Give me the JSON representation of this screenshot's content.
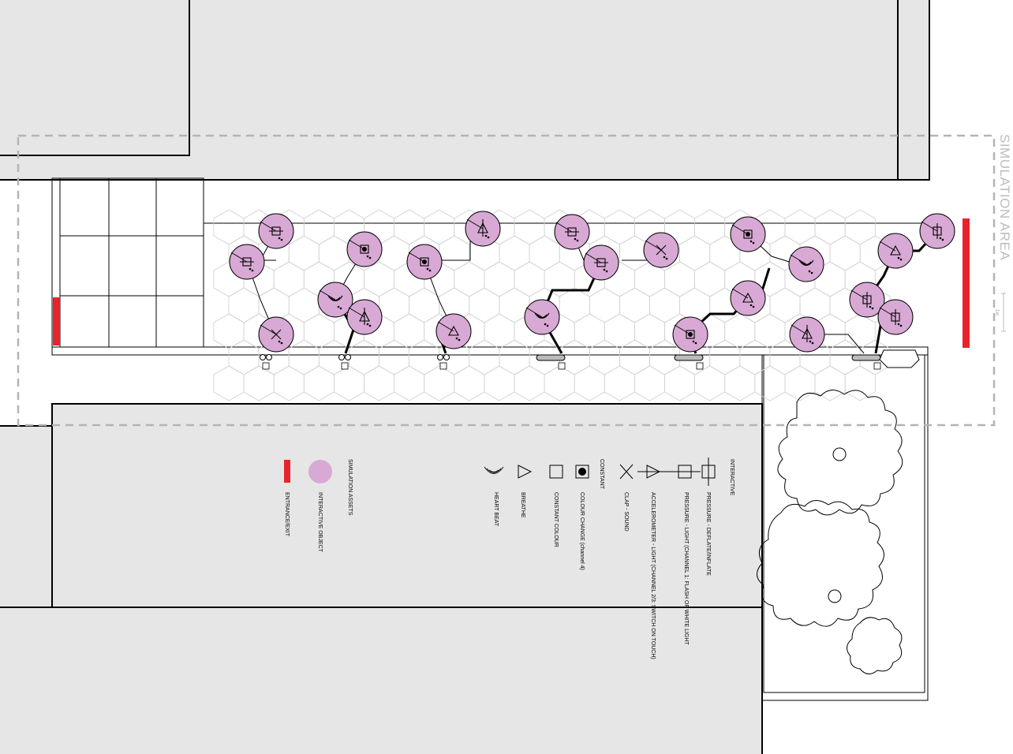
{
  "simulation_area_label": "SIMULATION AREA",
  "scale_label": "1m",
  "legend": {
    "assets_title": "SIMULATION ASSETS",
    "assets": [
      {
        "label": "INTERACTIVE OBJECT",
        "icon": "pink-circle-icon"
      },
      {
        "label": "ENTRANCE/EXIT",
        "icon": "red-bar-icon"
      }
    ],
    "constant_title": "CONSTANT",
    "constant": [
      {
        "label": "COLOUR CHANGE (channel 4)",
        "icon": "filled-square-icon"
      },
      {
        "label": "CONSTANT COLOUR",
        "icon": "square-icon"
      },
      {
        "label": "BREATHE",
        "icon": "triangle-icon"
      },
      {
        "label": "HEART BEAT",
        "icon": "heartbeat-icon"
      }
    ],
    "interactive_title": "INTERACTIVE",
    "interactive": [
      {
        "label": "PRESSURE - DEFLATE/INFLATE",
        "icon": "pressure-inflate-icon"
      },
      {
        "label": "PRESSURE - LIGHT (CHANNEL 1: FLASH OF WHITE LIGHT",
        "icon": "pressure-light-icon"
      },
      {
        "label": "ACCELEROMETER - LIGHT (CHANNEL 2/3: SWITCH ON TOUCH)",
        "icon": "accelerometer-icon"
      },
      {
        "label": "CLAP - SOUND",
        "icon": "clap-icon"
      }
    ]
  },
  "colors": {
    "object_fill": "#d8a9d4",
    "entrance": "#e8232a",
    "building": "#e6e6e6",
    "simulation_border": "#b4b4b4"
  }
}
